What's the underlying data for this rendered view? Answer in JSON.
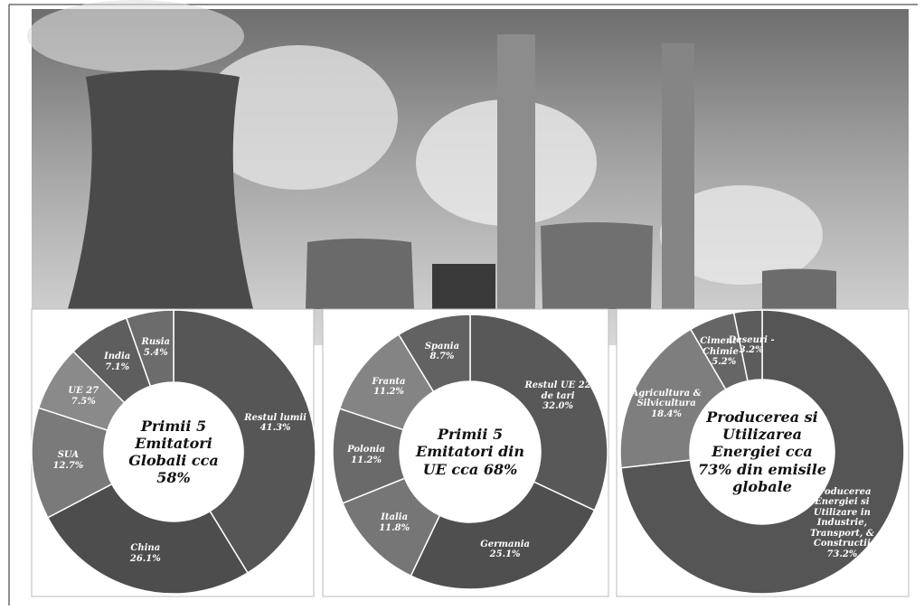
{
  "chart_data": [
    {
      "type": "donut",
      "center_text": "Primii 5 Emitatori Globali cca 58%",
      "categories": [
        "Restul lumii",
        "China",
        "SUA",
        "UE 27",
        "India",
        "Rusia"
      ],
      "values": [
        41.3,
        26.1,
        12.7,
        7.5,
        7.1,
        5.4
      ],
      "value_labels": [
        "41.3%",
        "26.1%",
        "12.7%",
        "7.5%",
        "7.1%",
        "5.4%"
      ],
      "colors": [
        "#565656",
        "#4d4d4d",
        "#7a7a7a",
        "#8a8a8a",
        "#5e5e5e",
        "#6c6c6c"
      ]
    },
    {
      "type": "donut",
      "center_text": "Primii 5 Emitatori din UE cca 68%",
      "categories": [
        "Restul UE 22 de tari",
        "Germania",
        "Italia",
        "Polonia",
        "Franta",
        "Spania"
      ],
      "values": [
        32.0,
        25.1,
        11.8,
        11.2,
        11.2,
        8.7
      ],
      "value_labels": [
        "32.0%",
        "25.1%",
        "11.8%",
        "11.2%",
        "11.2%",
        "8.7%"
      ],
      "colors": [
        "#585858",
        "#4f4f4f",
        "#767676",
        "#6a6a6a",
        "#848484",
        "#626262"
      ]
    },
    {
      "type": "donut",
      "center_text": "Producerea si Utilizarea Energiei cca 73% din emisile globale",
      "categories": [
        "Producerea Energiei si Utilizare in Industrie, Transport, & Constructii",
        "Agricultura & Silvicultura",
        "Ciment & Chimie -",
        "Deseuri -"
      ],
      "values": [
        73.2,
        18.4,
        5.2,
        3.2
      ],
      "value_labels": [
        "73.2%",
        "18.4%",
        "5.2%",
        "3.2%"
      ],
      "colors": [
        "#555555",
        "#7e7e7e",
        "#666666",
        "#5c5c5c"
      ]
    }
  ]
}
